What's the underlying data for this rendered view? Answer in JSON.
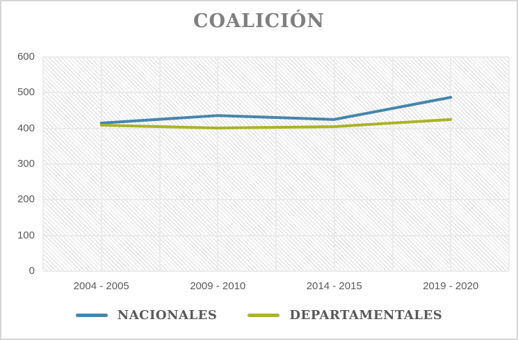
{
  "window": {
    "background": "#ffffff",
    "border_color": "#d5d5d5"
  },
  "chart_data": {
    "type": "line",
    "title": "COALICIÓN",
    "categories": [
      "2004 - 2005",
      "2009 - 2010",
      "2014 - 2015",
      "2019 - 2020"
    ],
    "series": [
      {
        "name": "NACIONALES",
        "color": "#4586ac",
        "values": [
          415,
          436,
          425,
          487
        ]
      },
      {
        "name": "DEPARTAMENTALES",
        "color": "#a9b426",
        "values": [
          409,
          401,
          405,
          425
        ]
      }
    ],
    "xlabel": "",
    "ylabel": "",
    "ylim": [
      0,
      600
    ],
    "yticks": [
      0,
      100,
      200,
      300,
      400,
      500,
      600
    ],
    "x_gridline_divisions": 8,
    "grid": {
      "horizontal": true,
      "vertical": true
    },
    "legend_position": "bottom",
    "plot_background": "diagonal-hatch-pattern",
    "line_width": 4,
    "colors": {
      "title_text": "#7f7f7f",
      "axis_text": "#595959",
      "legend_text": "#595959",
      "gridline": "#ebebeb",
      "hatch": "#d7d7d7"
    }
  }
}
